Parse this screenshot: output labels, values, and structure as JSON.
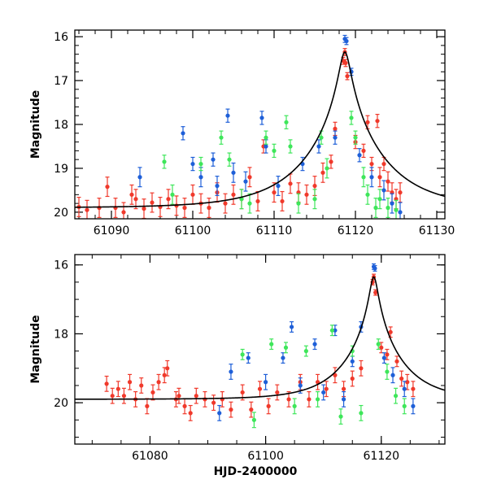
{
  "figure": {
    "xlabel": "HJD-2400000"
  },
  "colors": {
    "red": "#f0392b",
    "blue": "#1e5fd8",
    "green": "#3ee65a",
    "model": "#000000"
  },
  "chart_data": [
    {
      "type": "scatter",
      "title": "",
      "xlabel": "",
      "ylabel": "Magnitude",
      "xlim": [
        61085.5,
        61131
      ],
      "ylim": [
        20.15,
        15.85
      ],
      "xticks": [
        61090,
        61100,
        61110,
        61120,
        61130
      ],
      "yticks": [
        16,
        17,
        18,
        19,
        20
      ],
      "model": {
        "base": 19.9,
        "peak_mag": 16.35,
        "t0": 61118.7,
        "u0": 0.08,
        "tE": 8.0
      },
      "series": [
        {
          "name": "red",
          "color": "red",
          "points": [
            [
              61086,
              19.88
            ],
            [
              61087,
              19.95
            ],
            [
              61088.5,
              19.9
            ],
            [
              61089.5,
              19.42
            ],
            [
              61090.5,
              19.9
            ],
            [
              61091.5,
              20.0
            ],
            [
              61092.5,
              19.6
            ],
            [
              61093,
              19.7
            ],
            [
              61094,
              19.92
            ],
            [
              61095,
              19.78
            ],
            [
              61096,
              19.88
            ],
            [
              61097,
              19.7
            ],
            [
              61098,
              19.85
            ],
            [
              61099,
              19.9
            ],
            [
              61100,
              19.6
            ],
            [
              61101,
              19.8
            ],
            [
              61102,
              19.9
            ],
            [
              61103,
              19.55
            ],
            [
              61104,
              19.8
            ],
            [
              61105,
              19.6
            ],
            [
              61106,
              19.7
            ],
            [
              61107,
              19.2
            ],
            [
              61108,
              19.75
            ],
            [
              61108.7,
              18.5
            ],
            [
              61110,
              19.55
            ],
            [
              61111,
              19.75
            ],
            [
              61112,
              19.35
            ],
            [
              61113,
              19.55
            ],
            [
              61114,
              19.6
            ],
            [
              61115,
              19.4
            ],
            [
              61116,
              19.1
            ],
            [
              61117,
              18.85
            ],
            [
              61117.5,
              18.1
            ],
            [
              61118.5,
              16.55
            ],
            [
              61118.7,
              16.35
            ],
            [
              61118.8,
              16.6
            ],
            [
              61119,
              16.9
            ],
            [
              61120,
              18.4
            ],
            [
              61121,
              18.6
            ],
            [
              61121.5,
              17.95
            ],
            [
              61122,
              18.9
            ],
            [
              61122.7,
              17.92
            ],
            [
              61123,
              19.2
            ],
            [
              61123.5,
              18.9
            ],
            [
              61124,
              19.3
            ],
            [
              61124.5,
              19.55
            ],
            [
              61125,
              19.7
            ],
            [
              61125.5,
              19.55
            ]
          ]
        },
        {
          "name": "blue",
          "color": "blue",
          "points": [
            [
              61093.5,
              19.2
            ],
            [
              61098.8,
              18.2
            ],
            [
              61100,
              18.9
            ],
            [
              61101,
              19.2
            ],
            [
              61102.5,
              18.8
            ],
            [
              61103,
              19.4
            ],
            [
              61104.3,
              17.8
            ],
            [
              61105,
              19.1
            ],
            [
              61106.5,
              19.3
            ],
            [
              61108.5,
              17.85
            ],
            [
              61109,
              18.5
            ],
            [
              61110.5,
              19.4
            ],
            [
              61113.5,
              18.9
            ],
            [
              61115.5,
              18.5
            ],
            [
              61117.5,
              18.3
            ],
            [
              61118.7,
              16.05
            ],
            [
              61118.9,
              16.1
            ],
            [
              61119.5,
              16.8
            ],
            [
              61120.5,
              18.7
            ],
            [
              61122,
              19.2
            ],
            [
              61123.5,
              19.5
            ],
            [
              61124.5,
              19.8
            ],
            [
              61125.5,
              20.0
            ]
          ]
        },
        {
          "name": "green",
          "color": "green",
          "points": [
            [
              61096.5,
              18.85
            ],
            [
              61097.5,
              19.6
            ],
            [
              61101,
              18.9
            ],
            [
              61103.5,
              18.3
            ],
            [
              61104.5,
              18.8
            ],
            [
              61106,
              19.7
            ],
            [
              61107,
              19.8
            ],
            [
              61109,
              18.3
            ],
            [
              61110,
              18.6
            ],
            [
              61111.5,
              17.95
            ],
            [
              61112,
              18.5
            ],
            [
              61113,
              19.8
            ],
            [
              61115,
              19.7
            ],
            [
              61115.8,
              18.3
            ],
            [
              61116.5,
              19.0
            ],
            [
              61119.5,
              17.85
            ],
            [
              61120,
              18.3
            ],
            [
              61121,
              19.2
            ],
            [
              61121.5,
              19.6
            ],
            [
              61122.5,
              19.9
            ],
            [
              61123,
              19.7
            ],
            [
              61124,
              19.9
            ],
            [
              61125,
              19.95
            ]
          ]
        }
      ]
    },
    {
      "type": "scatter",
      "title": "",
      "xlabel": "HJD-2400000",
      "ylabel": "Magnitude",
      "xlim": [
        61067,
        61131
      ],
      "ylim": [
        21.2,
        15.7
      ],
      "xticks": [
        61080,
        61100,
        61120
      ],
      "yticks": [
        16,
        18,
        20
      ],
      "model": {
        "base": 19.9,
        "peak_mag": 16.35,
        "t0": 61118.7,
        "u0": 0.08,
        "tE": 8.0
      },
      "series": [
        {
          "name": "red",
          "color": "red",
          "points": [
            [
              61072.5,
              19.45
            ],
            [
              61073.5,
              19.8
            ],
            [
              61074.5,
              19.6
            ],
            [
              61075.5,
              19.8
            ],
            [
              61076.5,
              19.4
            ],
            [
              61077.5,
              19.9
            ],
            [
              61078.5,
              19.5
            ],
            [
              61079.5,
              20.1
            ],
            [
              61080.5,
              19.7
            ],
            [
              61081.5,
              19.4
            ],
            [
              61082.5,
              19.2
            ],
            [
              61083,
              19.0
            ],
            [
              61084.5,
              19.9
            ],
            [
              61085,
              19.8
            ],
            [
              61086,
              20.1
            ],
            [
              61087,
              20.3
            ],
            [
              61088,
              19.8
            ],
            [
              61089.5,
              19.9
            ],
            [
              61091,
              20.0
            ],
            [
              61092.5,
              19.9
            ],
            [
              61094,
              20.2
            ],
            [
              61096,
              19.7
            ],
            [
              61097.5,
              20.2
            ],
            [
              61099,
              19.6
            ],
            [
              61100.5,
              20.1
            ],
            [
              61102,
              19.7
            ],
            [
              61104,
              19.9
            ],
            [
              61106,
              19.4
            ],
            [
              61107.5,
              19.9
            ],
            [
              61109,
              19.4
            ],
            [
              61110.5,
              19.6
            ],
            [
              61112,
              19.2
            ],
            [
              61113.5,
              19.6
            ],
            [
              61115,
              19.3
            ],
            [
              61116.5,
              19.0
            ],
            [
              61118.5,
              16.5
            ],
            [
              61118.7,
              16.35
            ],
            [
              61119,
              16.8
            ],
            [
              61120,
              18.4
            ],
            [
              61121,
              18.6
            ],
            [
              61121.6,
              17.95
            ],
            [
              61122.7,
              18.8
            ],
            [
              61123.5,
              19.3
            ],
            [
              61124.5,
              19.4
            ],
            [
              61125.5,
              19.6
            ]
          ]
        },
        {
          "name": "blue",
          "color": "blue",
          "points": [
            [
              61092,
              20.3
            ],
            [
              61094,
              19.1
            ],
            [
              61097,
              18.7
            ],
            [
              61100,
              19.4
            ],
            [
              61103,
              18.7
            ],
            [
              61104.5,
              17.8
            ],
            [
              61106,
              19.5
            ],
            [
              61108.5,
              18.3
            ],
            [
              61110,
              19.7
            ],
            [
              61112,
              17.9
            ],
            [
              61113.5,
              19.9
            ],
            [
              61115,
              18.8
            ],
            [
              61116.5,
              17.8
            ],
            [
              61118.7,
              16.05
            ],
            [
              61118.9,
              16.1
            ],
            [
              61120.5,
              18.7
            ],
            [
              61122,
              19.2
            ],
            [
              61124,
              19.6
            ],
            [
              61125.5,
              20.1
            ]
          ]
        },
        {
          "name": "green",
          "color": "green",
          "points": [
            [
              61096,
              18.6
            ],
            [
              61098,
              20.5
            ],
            [
              61101,
              18.3
            ],
            [
              61103.5,
              18.4
            ],
            [
              61105,
              20.1
            ],
            [
              61107,
              18.5
            ],
            [
              61109,
              19.9
            ],
            [
              61111.5,
              17.9
            ],
            [
              61113,
              20.4
            ],
            [
              61115,
              18.5
            ],
            [
              61116.5,
              20.3
            ],
            [
              61119.5,
              18.3
            ],
            [
              61121,
              19.1
            ],
            [
              61122.5,
              19.8
            ],
            [
              61124,
              20.1
            ]
          ]
        }
      ]
    }
  ]
}
